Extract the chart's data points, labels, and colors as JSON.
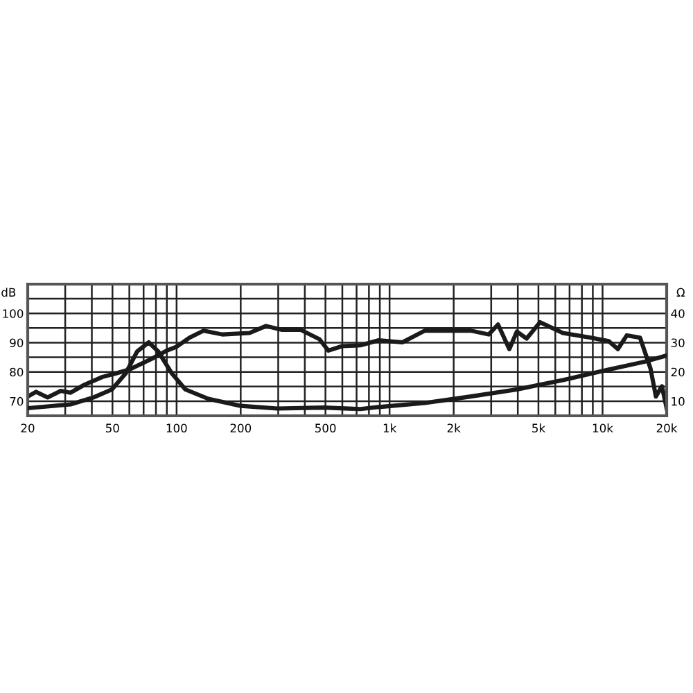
{
  "chart_data": {
    "type": "line",
    "ylabel": "dB",
    "y2label": "Ω",
    "log": "x",
    "grid": true,
    "line_style": "solid",
    "marker": "none",
    "xlim": [
      20,
      20000
    ],
    "xticks": [
      20,
      {
        "value": 30,
        "label": null
      },
      {
        "value": 40,
        "label": null
      },
      50,
      {
        "value": 60,
        "label": null
      },
      {
        "value": 70,
        "label": null
      },
      {
        "value": 80,
        "label": null
      },
      {
        "value": 90,
        "label": null
      },
      100,
      200,
      {
        "value": 300,
        "label": null
      },
      {
        "value": 400,
        "label": null
      },
      500,
      {
        "value": 600,
        "label": null
      },
      {
        "value": 700,
        "label": null
      },
      {
        "value": 800,
        "label": null
      },
      {
        "value": 900,
        "label": null
      },
      {
        "value": 1000,
        "label": "1k"
      },
      {
        "value": 2000,
        "label": "2k"
      },
      {
        "value": 3000,
        "label": null
      },
      {
        "value": 4000,
        "label": null
      },
      {
        "value": 5000,
        "label": "5k"
      },
      {
        "value": 6000,
        "label": null
      },
      {
        "value": 7000,
        "label": null
      },
      {
        "value": 8000,
        "label": null
      },
      {
        "value": 9000,
        "label": null
      },
      {
        "value": 10000,
        "label": "10k"
      },
      {
        "value": 20000,
        "label": "20k"
      }
    ],
    "ylim": [
      65,
      110
    ],
    "yticks": [
      {
        "value": 65,
        "label": null
      },
      70,
      {
        "value": 75,
        "label": null
      },
      80,
      {
        "value": 85,
        "label": null
      },
      90,
      {
        "value": 95,
        "label": null
      },
      100,
      {
        "value": 105,
        "label": null
      }
    ],
    "y2lim": [
      5,
      50
    ],
    "y2ticks": [
      10,
      20,
      30,
      40
    ],
    "series": [
      {
        "color": "#1a1a1a",
        "x": [
          20,
          21.9,
          24.8,
          28.6,
          31.8,
          36.9,
          44.9,
          52,
          60,
          77,
          90,
          100,
          115,
          134,
          164,
          220,
          263,
          311,
          382,
          468,
          516,
          599,
          730,
          889,
          1148,
          1464,
          2405,
          2920,
          3230,
          3650,
          3960,
          4400,
          5090,
          6510,
          8800,
          10700,
          11800,
          13000,
          15000,
          16800,
          17800,
          19000,
          20000
        ],
        "values": [
          71.6,
          73.2,
          71.3,
          73.5,
          72.9,
          75.6,
          78.3,
          79.5,
          80.8,
          84.6,
          87.3,
          88.6,
          91.7,
          94.1,
          92.8,
          93.3,
          95.7,
          94.4,
          94.4,
          91.2,
          87.3,
          88.8,
          89.1,
          90.8,
          90.1,
          94.1,
          94.1,
          92.8,
          96.2,
          87.8,
          93.8,
          91.4,
          97.0,
          93.3,
          91.7,
          90.5,
          87.8,
          92.5,
          91.7,
          81.1,
          71.6,
          75.1,
          67.6
        ]
      },
      {
        "color": "#1a1a1a",
        "axis": "y2",
        "x": [
          20,
          31.8,
          40.8,
          49.7,
          57.7,
          65.3,
          74,
          82,
          95,
          110,
          141,
          200,
          297,
          489,
          730,
          889,
          1464,
          2405,
          3960,
          6510,
          10700,
          15800,
          20000
        ],
        "values": [
          7.6,
          8.9,
          11.3,
          14,
          19.5,
          27,
          30.1,
          27,
          19.5,
          14,
          10.8,
          8.4,
          7.5,
          7.8,
          7.3,
          8,
          9.4,
          11.6,
          14,
          17.2,
          20.8,
          23.5,
          25.6
        ]
      }
    ]
  }
}
